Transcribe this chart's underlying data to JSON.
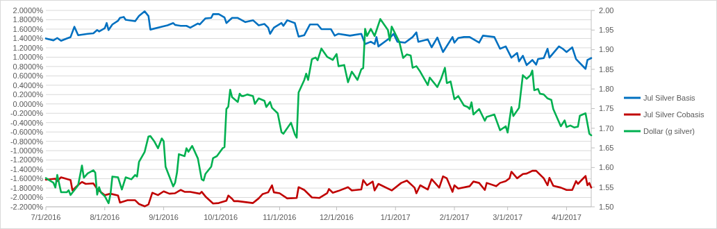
{
  "chart_data": {
    "type": "line",
    "xlim": [
      "2016-07-01",
      "2017-04-14"
    ],
    "xticks": [
      {
        "value": "2016-07-01",
        "label": "7/1/2016"
      },
      {
        "value": "2016-08-01",
        "label": "8/1/2016"
      },
      {
        "value": "2016-09-01",
        "label": "9/1/2016"
      },
      {
        "value": "2016-10-01",
        "label": "10/1/2016"
      },
      {
        "value": "2016-11-01",
        "label": "11/1/2016"
      },
      {
        "value": "2016-12-01",
        "label": "12/1/2016"
      },
      {
        "value": "2017-01-01",
        "label": "1/1/2017"
      },
      {
        "value": "2017-02-01",
        "label": "2/1/2017"
      },
      {
        "value": "2017-03-01",
        "label": "3/1/2017"
      },
      {
        "value": "2017-04-01",
        "label": "4/1/2017"
      }
    ],
    "ylim": [
      -2.2,
      2.0
    ],
    "yticks": [
      {
        "value": 2.0,
        "label": "2.0000%"
      },
      {
        "value": 1.8,
        "label": "1.8000%"
      },
      {
        "value": 1.6,
        "label": "1.6000%"
      },
      {
        "value": 1.4,
        "label": "1.4000%"
      },
      {
        "value": 1.2,
        "label": "1.2000%"
      },
      {
        "value": 1.0,
        "label": "1.0000%"
      },
      {
        "value": 0.8,
        "label": "0.8000%"
      },
      {
        "value": 0.6,
        "label": "0.6000%"
      },
      {
        "value": 0.4,
        "label": "0.4000%"
      },
      {
        "value": 0.2,
        "label": "0.2000%"
      },
      {
        "value": 0,
        "label": "0.0000%"
      },
      {
        "value": -0.2,
        "label": "-0.2000%"
      },
      {
        "value": -0.4,
        "label": "-0.4000%"
      },
      {
        "value": -0.6,
        "label": "-0.6000%"
      },
      {
        "value": -0.8,
        "label": "-0.8000%"
      },
      {
        "value": -1.0,
        "label": "-1.0000%"
      },
      {
        "value": -1.2,
        "label": "-1.2000%"
      },
      {
        "value": -1.4,
        "label": "-1.4000%"
      },
      {
        "value": -1.6,
        "label": "-1.6000%"
      },
      {
        "value": -1.8,
        "label": "-1.8000%"
      },
      {
        "value": -2.0,
        "label": "-2.0000%"
      },
      {
        "value": -2.2,
        "label": "-2.2000%"
      }
    ],
    "y2lim": [
      1.5,
      2.0
    ],
    "y2ticks": [
      {
        "value": 1.5,
        "label": "1.50"
      },
      {
        "value": 1.55,
        "label": "1.55"
      },
      {
        "value": 1.6,
        "label": "1.60"
      },
      {
        "value": 1.65,
        "label": "1.65"
      },
      {
        "value": 1.7,
        "label": "1.70"
      },
      {
        "value": 1.75,
        "label": "1.75"
      },
      {
        "value": 1.8,
        "label": "1.80"
      },
      {
        "value": 1.85,
        "label": "1.85"
      },
      {
        "value": 1.9,
        "label": "1.90"
      },
      {
        "value": 1.95,
        "label": "1.95"
      },
      {
        "value": 2.0,
        "label": "2.00"
      }
    ],
    "grid": "y",
    "legend": "right",
    "series": [
      {
        "name": "Jul Silver Basis",
        "color": "#0070c0",
        "x": [
          "2016-07-01",
          "2016-07-05",
          "2016-07-07",
          "2016-07-09",
          "2016-07-12",
          "2016-07-14",
          "2016-07-16",
          "2016-07-18",
          "2016-07-23",
          "2016-07-26",
          "2016-07-28",
          "2016-07-29",
          "2016-08-01",
          "2016-08-02",
          "2016-08-03",
          "2016-08-05",
          "2016-08-08",
          "2016-08-09",
          "2016-08-11",
          "2016-08-12",
          "2016-08-17",
          "2016-08-19",
          "2016-08-22",
          "2016-08-24",
          "2016-08-25",
          "2016-08-31",
          "2016-09-03",
          "2016-09-06",
          "2016-09-07",
          "2016-09-10",
          "2016-09-13",
          "2016-09-15",
          "2016-09-19",
          "2016-09-20",
          "2016-09-23",
          "2016-09-26",
          "2016-09-27",
          "2016-09-30",
          "2016-10-03",
          "2016-10-04",
          "2016-10-07",
          "2016-10-10",
          "2016-10-14",
          "2016-10-18",
          "2016-10-21",
          "2016-10-24",
          "2016-10-26",
          "2016-10-27",
          "2016-10-29",
          "2016-11-02",
          "2016-11-03",
          "2016-11-05",
          "2016-11-09",
          "2016-11-11",
          "2016-11-14",
          "2016-11-17",
          "2016-11-21",
          "2016-11-23",
          "2016-11-28",
          "2016-11-30",
          "2016-12-02",
          "2016-12-08",
          "2016-12-14",
          "2016-12-16",
          "2016-12-19",
          "2016-12-21",
          "2016-12-22",
          "2016-12-23",
          "2016-12-29",
          "2016-12-31",
          "2017-01-02",
          "2017-01-06",
          "2017-01-10",
          "2017-01-12",
          "2017-01-13",
          "2017-01-18",
          "2017-01-20",
          "2017-01-23",
          "2017-01-26",
          "2017-01-31",
          "2017-02-01",
          "2017-02-03",
          "2017-02-06",
          "2017-02-09",
          "2017-02-14",
          "2017-02-16",
          "2017-02-22",
          "2017-02-25",
          "2017-02-28",
          "2017-03-03",
          "2017-03-06",
          "2017-03-07",
          "2017-03-09",
          "2017-03-11",
          "2017-03-14",
          "2017-03-16",
          "2017-03-17",
          "2017-03-20",
          "2017-03-22",
          "2017-03-23",
          "2017-03-28",
          "2017-03-30",
          "2017-04-01",
          "2017-04-04",
          "2017-04-06",
          "2017-04-11",
          "2017-04-12",
          "2017-04-14"
        ],
        "values": [
          1.4,
          1.36,
          1.41,
          1.35,
          1.4,
          1.43,
          1.65,
          1.47,
          1.5,
          1.51,
          1.58,
          1.55,
          1.62,
          1.73,
          1.58,
          1.7,
          1.78,
          1.84,
          1.86,
          1.8,
          1.77,
          1.88,
          1.98,
          1.88,
          1.59,
          1.65,
          1.68,
          1.73,
          1.69,
          1.67,
          1.67,
          1.63,
          1.72,
          1.7,
          1.83,
          1.84,
          1.92,
          1.92,
          1.85,
          1.73,
          1.84,
          1.84,
          1.75,
          1.79,
          1.68,
          1.71,
          1.63,
          1.5,
          1.63,
          1.73,
          1.67,
          1.79,
          1.73,
          1.44,
          1.47,
          1.7,
          1.7,
          1.6,
          1.6,
          1.46,
          1.5,
          1.46,
          1.5,
          1.28,
          1.33,
          1.28,
          1.43,
          1.23,
          1.41,
          1.5,
          1.33,
          1.31,
          1.43,
          1.53,
          1.33,
          1.38,
          1.21,
          1.42,
          1.11,
          1.43,
          1.31,
          1.41,
          1.43,
          1.43,
          1.31,
          1.46,
          1.43,
          1.18,
          1.23,
          0.99,
          1.09,
          0.91,
          1.03,
          0.83,
          0.94,
          0.84,
          0.96,
          0.98,
          1.18,
          0.99,
          1.23,
          1.18,
          1.11,
          1.21,
          0.96,
          0.75,
          0.94,
          0.98
        ]
      },
      {
        "name": "Jul Silver Cobasis",
        "color": "#c00000",
        "x": [
          "2016-07-01",
          "2016-07-06",
          "2016-07-07",
          "2016-07-09",
          "2016-07-14",
          "2016-07-15",
          "2016-07-18",
          "2016-07-20",
          "2016-07-22",
          "2016-07-26",
          "2016-07-28",
          "2016-08-01",
          "2016-08-04",
          "2016-08-08",
          "2016-08-09",
          "2016-08-13",
          "2016-08-17",
          "2016-08-19",
          "2016-08-22",
          "2016-08-24",
          "2016-08-26",
          "2016-08-29",
          "2016-09-01",
          "2016-09-04",
          "2016-09-07",
          "2016-09-10",
          "2016-09-12",
          "2016-09-15",
          "2016-09-20",
          "2016-09-21",
          "2016-09-23",
          "2016-09-27",
          "2016-09-30",
          "2016-10-04",
          "2016-10-05",
          "2016-10-07",
          "2016-10-08",
          "2016-10-10",
          "2016-10-18",
          "2016-10-21",
          "2016-10-23",
          "2016-10-26",
          "2016-10-28",
          "2016-10-29",
          "2016-11-01",
          "2016-11-05",
          "2016-11-10",
          "2016-11-11",
          "2016-11-14",
          "2016-11-18",
          "2016-11-22",
          "2016-11-26",
          "2016-11-27",
          "2016-11-29",
          "2016-12-02",
          "2016-12-07",
          "2016-12-09",
          "2016-12-14",
          "2016-12-15",
          "2016-12-17",
          "2016-12-20",
          "2016-12-21",
          "2016-12-23",
          "2016-12-30",
          "2017-01-04",
          "2017-01-07",
          "2017-01-11",
          "2017-01-12",
          "2017-01-14",
          "2017-01-18",
          "2017-01-20",
          "2017-01-24",
          "2017-01-26",
          "2017-01-28",
          "2017-01-31",
          "2017-02-01",
          "2017-02-03",
          "2017-02-09",
          "2017-02-11",
          "2017-02-14",
          "2017-02-17",
          "2017-02-18",
          "2017-02-23",
          "2017-02-25",
          "2017-02-28",
          "2017-03-02",
          "2017-03-03",
          "2017-03-06",
          "2017-03-09",
          "2017-03-11",
          "2017-03-14",
          "2017-03-16",
          "2017-03-20",
          "2017-03-22",
          "2017-03-23",
          "2017-03-25",
          "2017-03-29",
          "2017-04-01",
          "2017-04-04",
          "2017-04-06",
          "2017-04-07",
          "2017-04-11",
          "2017-04-12",
          "2017-04-13",
          "2017-04-14"
        ],
        "values": [
          -1.62,
          -1.6,
          -1.65,
          -1.57,
          -1.63,
          -1.85,
          -1.73,
          -1.67,
          -1.71,
          -1.7,
          -1.82,
          -1.95,
          -1.92,
          -1.96,
          -2.11,
          -2.06,
          -2.06,
          -2.14,
          -2.19,
          -2.15,
          -1.9,
          -1.95,
          -1.87,
          -1.92,
          -1.91,
          -1.84,
          -1.88,
          -1.88,
          -1.92,
          -1.88,
          -1.98,
          -2.13,
          -2.12,
          -2.07,
          -1.96,
          -2.03,
          -2.08,
          -2.08,
          -2.12,
          -2.02,
          -1.93,
          -1.89,
          -1.74,
          -1.89,
          -1.91,
          -2.02,
          -2.01,
          -1.78,
          -1.84,
          -2.0,
          -2.01,
          -1.91,
          -1.82,
          -1.9,
          -1.86,
          -1.78,
          -1.85,
          -1.83,
          -1.63,
          -1.74,
          -1.66,
          -1.85,
          -1.71,
          -1.85,
          -1.69,
          -1.64,
          -1.79,
          -1.91,
          -1.74,
          -1.83,
          -1.61,
          -1.79,
          -1.55,
          -1.59,
          -1.88,
          -1.74,
          -1.81,
          -1.76,
          -1.66,
          -1.69,
          -1.84,
          -1.69,
          -1.76,
          -1.69,
          -1.65,
          -1.59,
          -1.45,
          -1.59,
          -1.5,
          -1.49,
          -1.43,
          -1.43,
          -1.59,
          -1.74,
          -1.58,
          -1.75,
          -1.79,
          -1.84,
          -1.84,
          -1.65,
          -1.71,
          -1.54,
          -1.74,
          -1.69,
          -1.79
        ]
      },
      {
        "name": "Dollar (g silver)",
        "color": "#00b050",
        "axis": "y2",
        "x": [
          "2016-07-01",
          "2016-07-05",
          "2016-07-06",
          "2016-07-07",
          "2016-07-09",
          "2016-07-12",
          "2016-07-13",
          "2016-07-14",
          "2016-07-18",
          "2016-07-20",
          "2016-07-21",
          "2016-07-23",
          "2016-07-26",
          "2016-07-27",
          "2016-07-28",
          "2016-07-29",
          "2016-07-30",
          "2016-08-01",
          "2016-08-03",
          "2016-08-04",
          "2016-08-05",
          "2016-08-08",
          "2016-08-10",
          "2016-08-12",
          "2016-08-15",
          "2016-08-17",
          "2016-08-18",
          "2016-08-19",
          "2016-08-22",
          "2016-08-24",
          "2016-08-25",
          "2016-08-27",
          "2016-08-29",
          "2016-08-31",
          "2016-09-01",
          "2016-09-02",
          "2016-09-06",
          "2016-09-07",
          "2016-09-08",
          "2016-09-09",
          "2016-09-12",
          "2016-09-13",
          "2016-09-14",
          "2016-09-16",
          "2016-09-19",
          "2016-09-21",
          "2016-09-22",
          "2016-09-23",
          "2016-09-26",
          "2016-09-27",
          "2016-09-29",
          "2016-10-02",
          "2016-10-03",
          "2016-10-04",
          "2016-10-05",
          "2016-10-06",
          "2016-10-07",
          "2016-10-10",
          "2016-10-11",
          "2016-10-12",
          "2016-10-13",
          "2016-10-15",
          "2016-10-18",
          "2016-10-19",
          "2016-10-21",
          "2016-10-24",
          "2016-10-25",
          "2016-10-27",
          "2016-10-28",
          "2016-10-31",
          "2016-11-02",
          "2016-11-03",
          "2016-11-04",
          "2016-11-07",
          "2016-11-09",
          "2016-11-10",
          "2016-11-11",
          "2016-11-14",
          "2016-11-15",
          "2016-11-16",
          "2016-11-18",
          "2016-11-20",
          "2016-11-21",
          "2016-11-23",
          "2016-11-26",
          "2016-11-29",
          "2016-12-01",
          "2016-12-02",
          "2016-12-05",
          "2016-12-07",
          "2016-12-09",
          "2016-12-12",
          "2016-12-14",
          "2016-12-15",
          "2016-12-16",
          "2016-12-17",
          "2016-12-19",
          "2016-12-21",
          "2016-12-24",
          "2016-12-28",
          "2016-12-29",
          "2016-12-30",
          "2017-01-03",
          "2017-01-05",
          "2017-01-07",
          "2017-01-09",
          "2017-01-10",
          "2017-01-12",
          "2017-01-14",
          "2017-01-18",
          "2017-01-19",
          "2017-01-23",
          "2017-01-25",
          "2017-01-27",
          "2017-01-28",
          "2017-01-30",
          "2017-02-01",
          "2017-02-03",
          "2017-02-06",
          "2017-02-08",
          "2017-02-09",
          "2017-02-10",
          "2017-02-11",
          "2017-02-14",
          "2017-02-17",
          "2017-02-18",
          "2017-02-22",
          "2017-02-25",
          "2017-02-28",
          "2017-03-01",
          "2017-03-03",
          "2017-03-04",
          "2017-03-07",
          "2017-03-09",
          "2017-03-11",
          "2017-03-13",
          "2017-03-14",
          "2017-03-15",
          "2017-03-17",
          "2017-03-18",
          "2017-03-20",
          "2017-03-22",
          "2017-03-24",
          "2017-03-25",
          "2017-03-29",
          "2017-03-31",
          "2017-04-01",
          "2017-04-03",
          "2017-04-05",
          "2017-04-07",
          "2017-04-08",
          "2017-04-11",
          "2017-04-13",
          "2017-04-14"
        ],
        "values": [
          1.573,
          1.561,
          1.549,
          1.581,
          1.537,
          1.537,
          1.542,
          1.53,
          1.555,
          1.605,
          1.574,
          1.585,
          1.593,
          1.587,
          1.531,
          1.55,
          1.536,
          1.527,
          1.509,
          1.532,
          1.577,
          1.575,
          1.544,
          1.575,
          1.57,
          1.581,
          1.577,
          1.614,
          1.64,
          1.679,
          1.68,
          1.667,
          1.649,
          1.674,
          1.667,
          1.602,
          1.552,
          1.561,
          1.587,
          1.634,
          1.629,
          1.649,
          1.64,
          1.655,
          1.623,
          1.57,
          1.567,
          1.584,
          1.602,
          1.624,
          1.629,
          1.649,
          1.652,
          1.749,
          1.755,
          1.798,
          1.779,
          1.767,
          1.788,
          1.782,
          1.782,
          1.786,
          1.782,
          1.762,
          1.776,
          1.77,
          1.754,
          1.767,
          1.752,
          1.738,
          1.69,
          1.686,
          1.693,
          1.714,
          1.685,
          1.676,
          1.791,
          1.823,
          1.839,
          1.823,
          1.876,
          1.88,
          1.873,
          1.903,
          1.882,
          1.874,
          1.889,
          1.858,
          1.861,
          1.817,
          1.844,
          1.823,
          1.85,
          1.853,
          1.953,
          1.935,
          1.953,
          1.935,
          1.978,
          1.95,
          1.923,
          1.959,
          1.92,
          1.879,
          1.888,
          1.885,
          1.854,
          1.858,
          1.844,
          1.81,
          1.829,
          1.805,
          1.826,
          1.854,
          1.815,
          1.819,
          1.774,
          1.782,
          1.758,
          1.754,
          1.749,
          1.766,
          1.735,
          1.749,
          1.719,
          1.729,
          1.735,
          1.695,
          1.705,
          1.689,
          1.754,
          1.731,
          1.752,
          1.835,
          1.826,
          1.835,
          1.847,
          1.797,
          1.8,
          1.788,
          1.786,
          1.776,
          1.772,
          1.749,
          1.705,
          1.72,
          1.703,
          1.707,
          1.702,
          1.704,
          1.732,
          1.738,
          1.686,
          1.682
        ]
      }
    ]
  }
}
